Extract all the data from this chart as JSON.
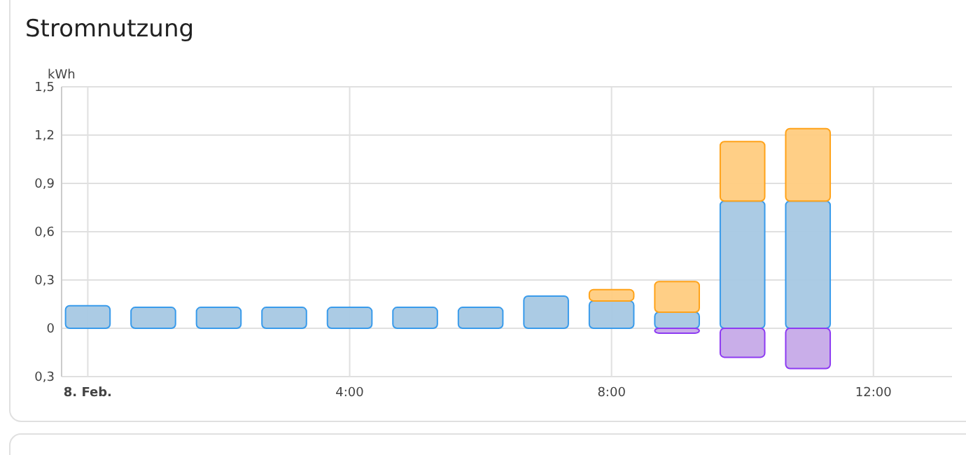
{
  "chart_data": {
    "type": "bar",
    "title": "Stromnutzung",
    "ylabel": "kWh",
    "stacked": true,
    "grid": true,
    "x": [
      0,
      1,
      2,
      3,
      4,
      5,
      6,
      7,
      8,
      9,
      10,
      11
    ],
    "xlim": [
      -0.4,
      13.2
    ],
    "xticks": [
      {
        "value": 0,
        "label": "8. Feb."
      },
      {
        "value": 4,
        "label": "4:00"
      },
      {
        "value": 8,
        "label": "8:00"
      },
      {
        "value": 12,
        "label": "12:00"
      }
    ],
    "ylim": [
      -0.3,
      1.5
    ],
    "yticks": [
      {
        "value": -0.3,
        "label": "0,3"
      },
      {
        "value": 0,
        "label": "0"
      },
      {
        "value": 0.3,
        "label": "0,3"
      },
      {
        "value": 0.6,
        "label": "0,6"
      },
      {
        "value": 0.9,
        "label": "0,9"
      },
      {
        "value": 1.2,
        "label": "1,2"
      },
      {
        "value": 1.5,
        "label": "1,5"
      }
    ],
    "series": [
      {
        "color": "#a7c8e3",
        "values": [
          0.14,
          0.13,
          0.13,
          0.13,
          0.13,
          0.13,
          0.13,
          0.2,
          0.17,
          0.1,
          0.79,
          0.79
        ]
      },
      {
        "color": "#ffcc80",
        "values": [
          null,
          null,
          null,
          null,
          null,
          null,
          null,
          null,
          0.07,
          0.19,
          0.37,
          0.45
        ]
      },
      {
        "color": "#c6aae8",
        "values": [
          null,
          null,
          null,
          null,
          null,
          null,
          null,
          null,
          null,
          -0.03,
          -0.18,
          -0.25
        ]
      }
    ]
  }
}
